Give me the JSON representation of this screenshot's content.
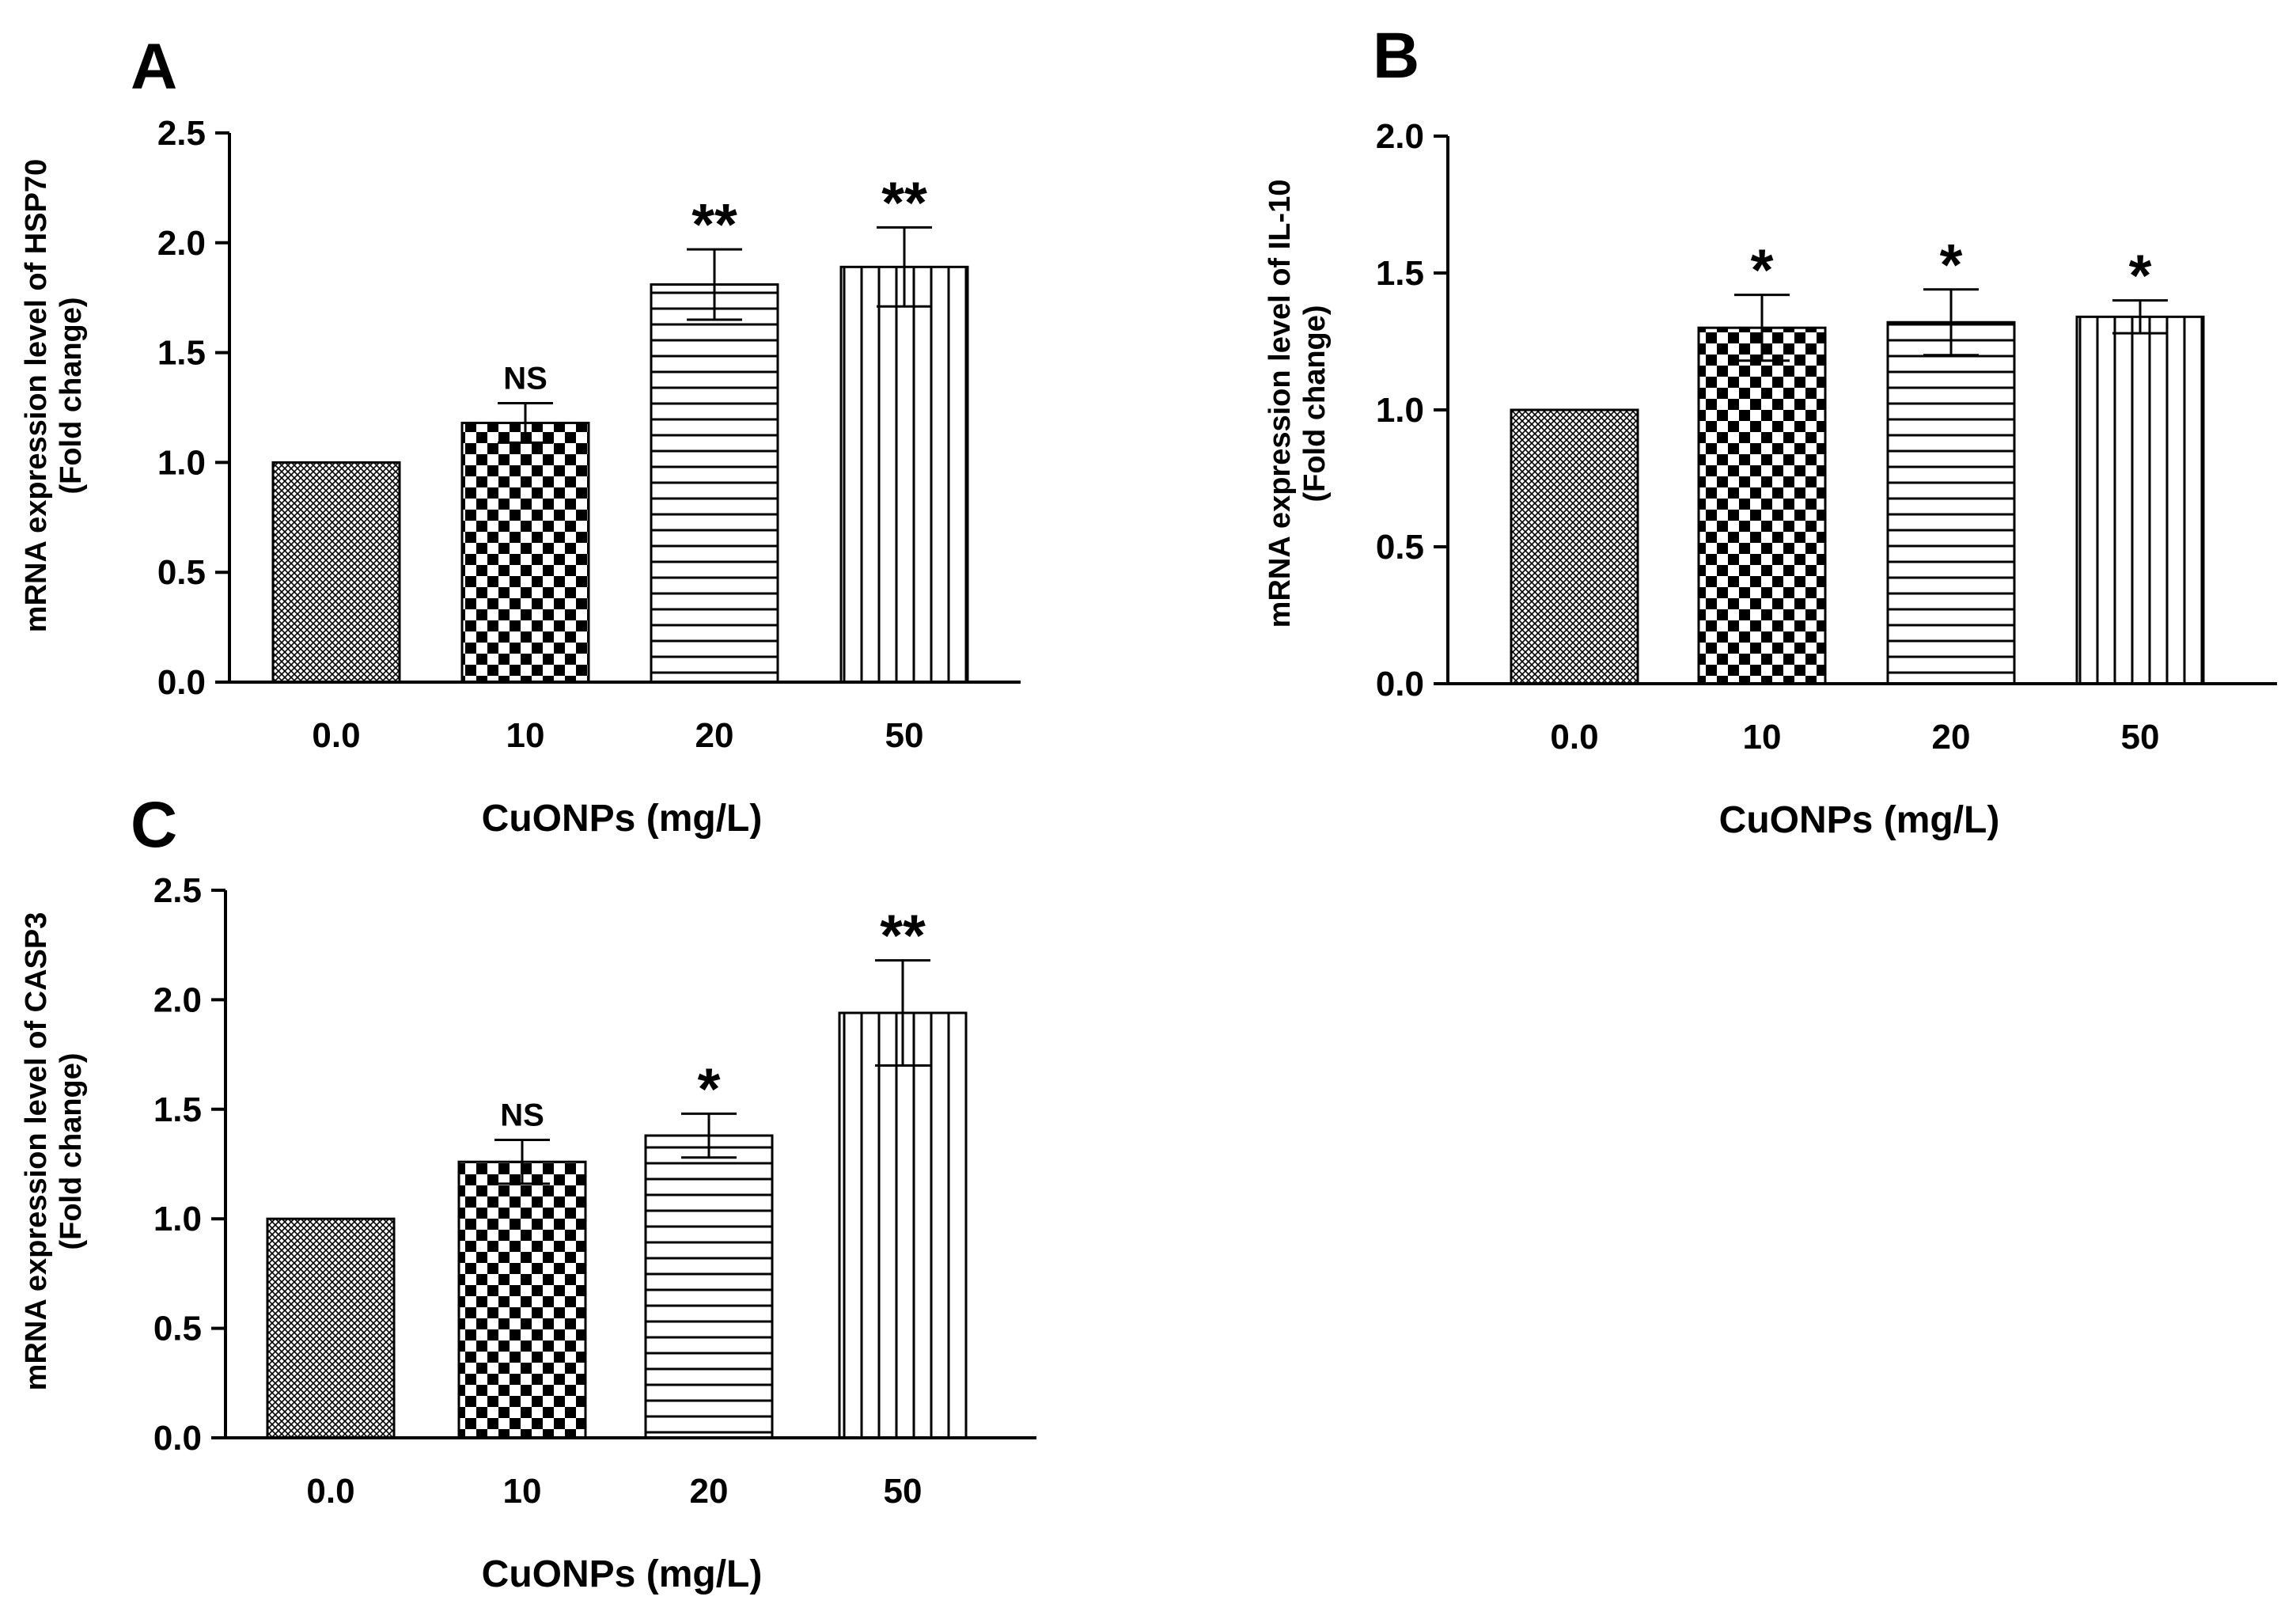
{
  "figure": {
    "x_axis_title": "CuONPs (mg/L)"
  },
  "chart_data": [
    {
      "panel": "A",
      "type": "bar",
      "categories": [
        "0.0",
        "10",
        "20",
        "50"
      ],
      "values": [
        1.0,
        1.18,
        1.81,
        1.89
      ],
      "errors": [
        0,
        0.09,
        0.16,
        0.18
      ],
      "significance": [
        "",
        "NS",
        "**",
        "**"
      ],
      "patterns": [
        "diag-check",
        "checker",
        "hlines",
        "vlines"
      ],
      "ylabel_line1": "mRNA expression level of HSP70",
      "ylabel_line2": "(Fold change)",
      "xlabel": "CuONPs (mg/L)",
      "ylim": [
        0,
        2.5
      ],
      "yticks": [
        "0.0",
        "0.5",
        "1.0",
        "1.5",
        "2.0",
        "2.5"
      ]
    },
    {
      "panel": "B",
      "type": "bar",
      "categories": [
        "0.0",
        "10",
        "20",
        "50"
      ],
      "values": [
        1.0,
        1.3,
        1.32,
        1.34
      ],
      "errors": [
        0,
        0.12,
        0.12,
        0.06
      ],
      "significance": [
        "",
        "*",
        "*",
        "*"
      ],
      "patterns": [
        "diag-check",
        "checker",
        "hlines",
        "vlines"
      ],
      "ylabel_line1": "mRNA expression level of IL-10",
      "ylabel_line2": "(Fold change)",
      "xlabel": "CuONPs (mg/L)",
      "ylim": [
        0,
        2.0
      ],
      "yticks": [
        "0.0",
        "0.5",
        "1.0",
        "1.5",
        "2.0"
      ]
    },
    {
      "panel": "C",
      "type": "bar",
      "categories": [
        "0.0",
        "10",
        "20",
        "50"
      ],
      "values": [
        1.0,
        1.26,
        1.38,
        1.94
      ],
      "errors": [
        0,
        0.1,
        0.1,
        0.24
      ],
      "significance": [
        "",
        "NS",
        "*",
        "**"
      ],
      "patterns": [
        "diag-check",
        "checker",
        "hlines",
        "vlines"
      ],
      "ylabel_line1": "mRNA expression level of CASP3",
      "ylabel_line2": "(Fold change)",
      "xlabel": "CuONPs (mg/L)",
      "ylim": [
        0,
        2.5
      ],
      "yticks": [
        "0.0",
        "0.5",
        "1.0",
        "1.5",
        "2.0",
        "2.5"
      ]
    }
  ]
}
